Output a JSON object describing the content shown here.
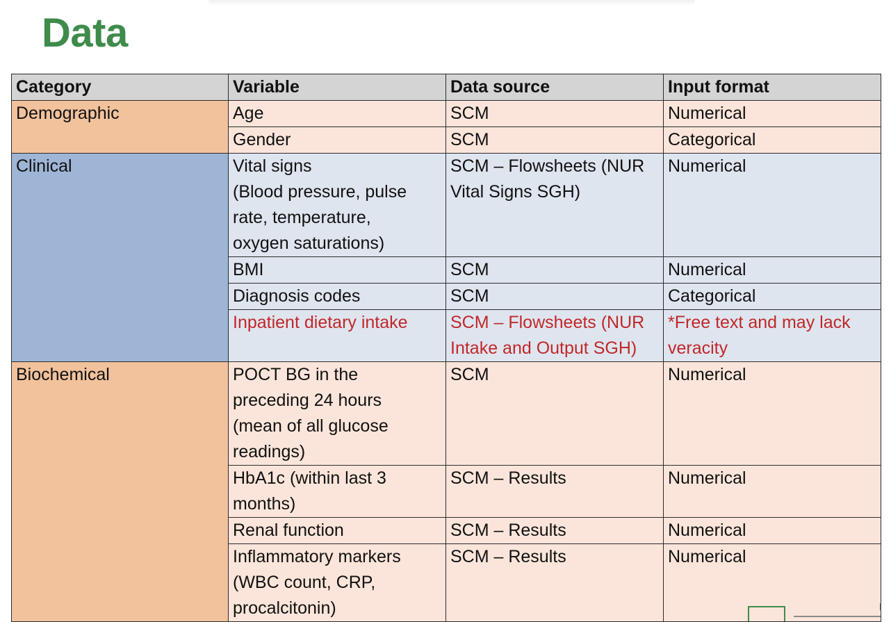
{
  "title": "Data",
  "table": {
    "headers": [
      "Category",
      "Variable",
      "Data source",
      "Input format"
    ],
    "categories": {
      "demographic": "Demographic",
      "clinical": "Clinical",
      "biochemical": "Biochemical"
    },
    "rows": {
      "age": [
        "Age",
        "SCM",
        "Numerical"
      ],
      "gender": [
        "Gender",
        "SCM",
        "Categorical"
      ],
      "vital_signs": [
        "Vital signs\n(Blood pressure, pulse\nrate, temperature,\noxygen saturations)",
        "SCM – Flowsheets (NUR\nVital Signs SGH)",
        "Numerical"
      ],
      "bmi": [
        "BMI",
        "SCM",
        "Numerical"
      ],
      "diagnosis_codes": [
        "Diagnosis codes",
        "SCM",
        "Categorical"
      ],
      "dietary_intake": [
        "Inpatient dietary intake",
        "SCM – Flowsheets (NUR\nIntake and Output SGH)",
        "*Free text and may lack\nveracity"
      ],
      "poct_bg": [
        "POCT BG in the\npreceding 24 hours\n(mean of all glucose\nreadings)",
        " SCM",
        "Numerical"
      ],
      "hba1c": [
        "HbA1c (within last 3\nmonths)",
        "SCM – Results",
        "Numerical"
      ],
      "renal_function": [
        "Renal function",
        "SCM – Results",
        "Numerical"
      ],
      "inflammatory_markers": [
        "Inflammatory markers\n(WBC count, CRP,\nprocalcitonin)",
        "SCM – Results",
        "Numerical"
      ]
    }
  },
  "colors": {
    "title": "#3e8b4c",
    "header_bg": "#d4d4d4",
    "demographic_bg": "#f2c29c",
    "clinical_bg": "#9eb5d6",
    "row_orange_bg": "#fbe5da",
    "row_blue_bg": "#dfe5ef",
    "highlight_text": "#c0282a"
  }
}
